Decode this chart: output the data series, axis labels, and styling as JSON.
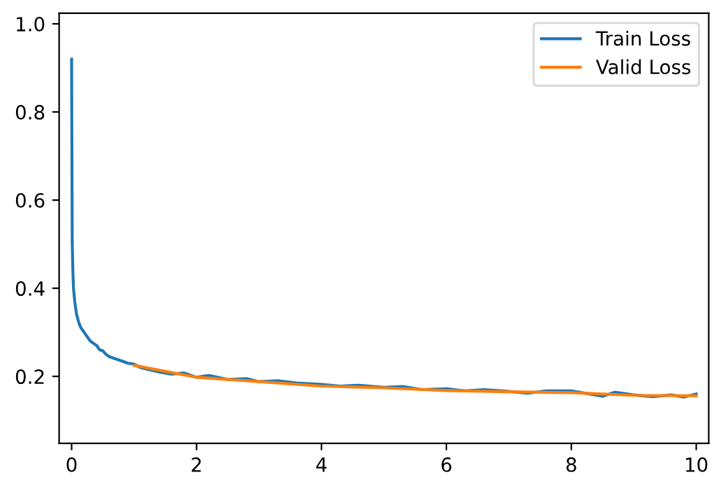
{
  "chart_data": {
    "type": "line",
    "xlim": [
      -0.2,
      10.2
    ],
    "ylim": [
      0.048,
      1.024
    ],
    "xticks": [
      0,
      2,
      4,
      6,
      8,
      10
    ],
    "yticks": [
      {
        "value": 0.2,
        "label": "0.2"
      },
      {
        "value": 0.4,
        "label": "0.4"
      },
      {
        "value": 0.6,
        "label": "0.6"
      },
      {
        "value": 0.8,
        "label": "0.8"
      },
      {
        "value": 1.0,
        "label": "1.0"
      }
    ],
    "legend": "top right",
    "grid": false,
    "series": [
      {
        "name": "Train Loss",
        "color": "#1f77b4",
        "x": [
          0,
          0.005,
          0.01,
          0.02,
          0.03,
          0.05,
          0.08,
          0.1,
          0.12,
          0.15,
          0.2,
          0.25,
          0.3,
          0.35,
          0.4,
          0.45,
          0.5,
          0.55,
          0.6,
          0.7,
          0.8,
          0.9,
          1.0,
          1.1,
          1.25,
          1.4,
          1.6,
          1.8,
          2.0,
          2.2,
          2.5,
          2.8,
          3.0,
          3.3,
          3.6,
          4.0,
          4.3,
          4.6,
          5.0,
          5.3,
          5.6,
          6.0,
          6.3,
          6.6,
          7.0,
          7.3,
          7.6,
          8.0,
          8.3,
          8.5,
          8.7,
          9.0,
          9.3,
          9.6,
          9.8,
          10.0
        ],
        "values": [
          0.92,
          0.7,
          0.5,
          0.44,
          0.4,
          0.37,
          0.34,
          0.33,
          0.32,
          0.31,
          0.3,
          0.29,
          0.28,
          0.275,
          0.27,
          0.26,
          0.258,
          0.25,
          0.245,
          0.24,
          0.235,
          0.23,
          0.228,
          0.22,
          0.215,
          0.21,
          0.205,
          0.208,
          0.198,
          0.202,
          0.193,
          0.195,
          0.188,
          0.19,
          0.185,
          0.182,
          0.178,
          0.18,
          0.175,
          0.177,
          0.17,
          0.172,
          0.167,
          0.17,
          0.166,
          0.162,
          0.167,
          0.167,
          0.16,
          0.155,
          0.164,
          0.158,
          0.154,
          0.158,
          0.153,
          0.16
        ]
      },
      {
        "name": "Valid Loss",
        "color": "#ff7f0e",
        "x": [
          1,
          2,
          3,
          4,
          5,
          6,
          7,
          8,
          9,
          10
        ],
        "values": [
          0.225,
          0.198,
          0.188,
          0.178,
          0.174,
          0.168,
          0.165,
          0.163,
          0.157,
          0.156
        ]
      }
    ]
  }
}
